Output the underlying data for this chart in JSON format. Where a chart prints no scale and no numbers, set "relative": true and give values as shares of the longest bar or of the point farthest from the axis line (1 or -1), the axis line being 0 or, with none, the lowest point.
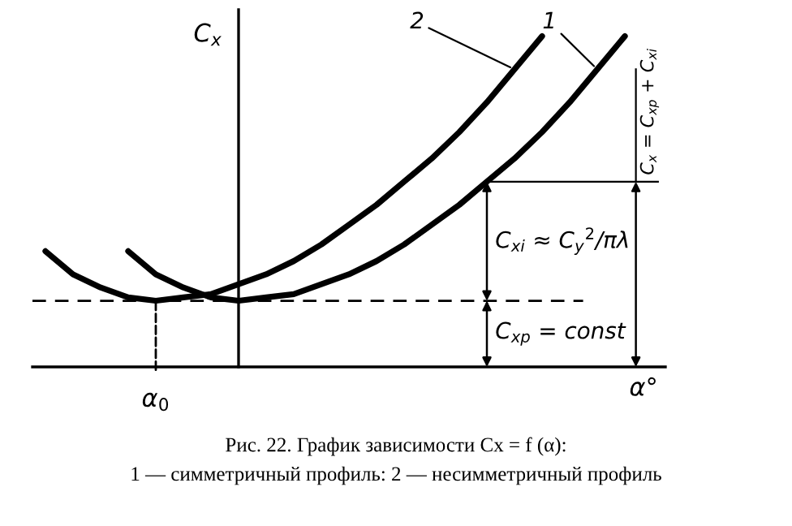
{
  "chart_data": {
    "type": "line",
    "relative": true,
    "xlabel": "α°",
    "ylabel": "C$_{x}$",
    "categories": [
      null,
      null,
      null,
      null,
      null,
      null,
      null,
      null,
      null,
      null,
      null,
      null,
      null,
      null,
      null,
      null,
      null,
      null,
      null,
      null,
      null,
      null
    ],
    "series": [
      {
        "name": "1",
        "color": "#000000",
        "values": [
          null,
          null,
          null,
          0.35,
          0.28,
          0.24,
          0.21,
          0.2,
          0.21,
          0.22,
          0.25,
          0.28,
          0.32,
          0.37,
          0.43,
          0.49,
          0.56,
          0.63,
          0.71,
          0.8,
          0.9,
          1
        ]
      },
      {
        "name": "2",
        "color": "#000000",
        "values": [
          0.35,
          0.28,
          0.24,
          0.21,
          0.2,
          0.21,
          0.22,
          0.25,
          0.28,
          0.32,
          0.37,
          0.43,
          0.49,
          0.56,
          0.63,
          0.71,
          0.8,
          0.9,
          1,
          null,
          null,
          null
        ]
      }
    ],
    "ref_lines": [
      {
        "axis": "y",
        "value": 0.2,
        "line_style": "dashed",
        "color": "#000000"
      }
    ],
    "annotations": [
      "α$_{0}$",
      "C$_{xp}$ = const",
      "C$_{xi}$ ≈ C$_{y}$$^{2}$/πλ",
      "C$_{x}$ = C$_{xp}$ + C$_{xi}$",
      "Рис. 22. График зависимости Cx = f (α):",
      "1 — симметричный профиль: 2 — несимметричный профиль"
    ],
    "line_style": "solid",
    "legend": false
  }
}
